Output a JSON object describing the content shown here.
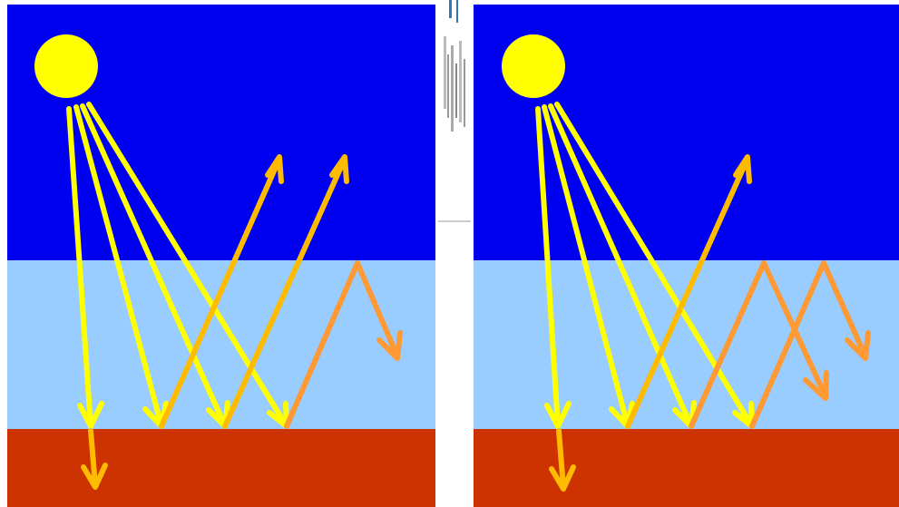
{
  "colors": {
    "sky": "#0000f0",
    "atmosphere": "#99ccff",
    "ground": "#cc3300",
    "sun": "#ffff00",
    "incoming_ray": "#ffff00",
    "outgoing_ray": "#ffbb00",
    "trapped_ray": "#ff9933"
  },
  "icons": {
    "sun": "sun-icon"
  },
  "panels": [
    {
      "id": "left",
      "trapped_bounces": 1,
      "escaping_rays": 2
    },
    {
      "id": "right",
      "trapped_bounces": 2,
      "escaping_rays": 1
    }
  ]
}
